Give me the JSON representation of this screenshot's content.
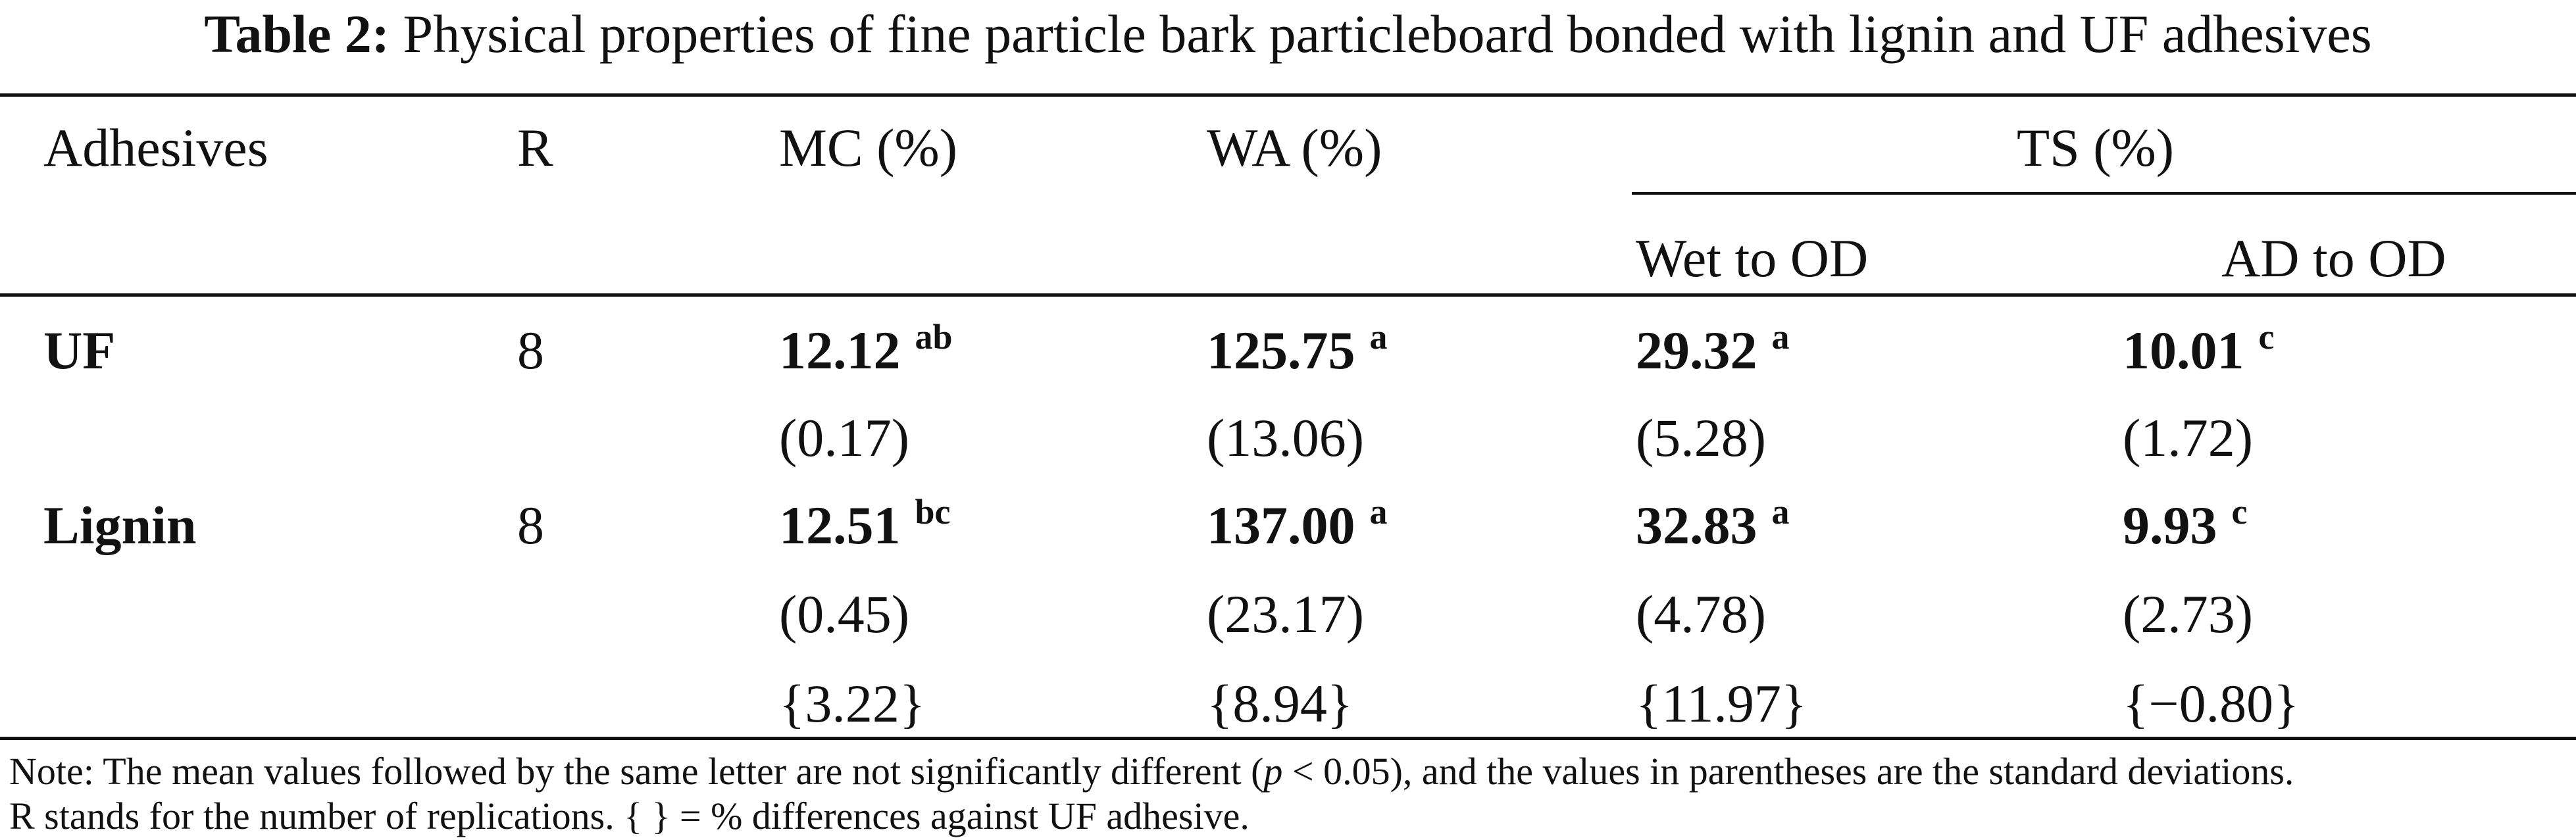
{
  "caption": {
    "label": "Table 2:",
    "text": "Physical properties of fine particle bark particleboard bonded with lignin and UF adhesives"
  },
  "headers": {
    "adhesives": "Adhesives",
    "r": "R",
    "mc": "MC (%)",
    "wa": "WA (%)",
    "ts": "TS (%)",
    "ts_wet": "Wet to OD",
    "ts_ad": "AD to OD"
  },
  "rows": [
    {
      "adhesive": "UF",
      "r": "8",
      "mc": {
        "value": "12.12",
        "letter": "ab",
        "sd": "(0.17)"
      },
      "wa": {
        "value": "125.75",
        "letter": "a",
        "sd": "(13.06)"
      },
      "ts_wet": {
        "value": "29.32",
        "letter": "a",
        "sd": "(5.28)"
      },
      "ts_ad": {
        "value": "10.01",
        "letter": "c",
        "sd": "(1.72)"
      }
    },
    {
      "adhesive": "Lignin",
      "r": "8",
      "mc": {
        "value": "12.51",
        "letter": "bc",
        "sd": "(0.45)",
        "diff": "{3.22}"
      },
      "wa": {
        "value": "137.00",
        "letter": "a",
        "sd": "(23.17)",
        "diff": "{8.94}"
      },
      "ts_wet": {
        "value": "32.83",
        "letter": "a",
        "sd": "(4.78)",
        "diff": "{11.97}"
      },
      "ts_ad": {
        "value": "9.93",
        "letter": "c",
        "sd": "(2.73)",
        "diff": "{−0.80}"
      }
    }
  ],
  "note": {
    "line1_before": "Note: The mean values followed by the same letter are not significantly different (",
    "line1_italic": "p",
    "line1_after": " < 0.05), and the values in parentheses are the standard deviations.",
    "line2": "R stands for the number of replications. { } = % differences against UF adhesive."
  }
}
